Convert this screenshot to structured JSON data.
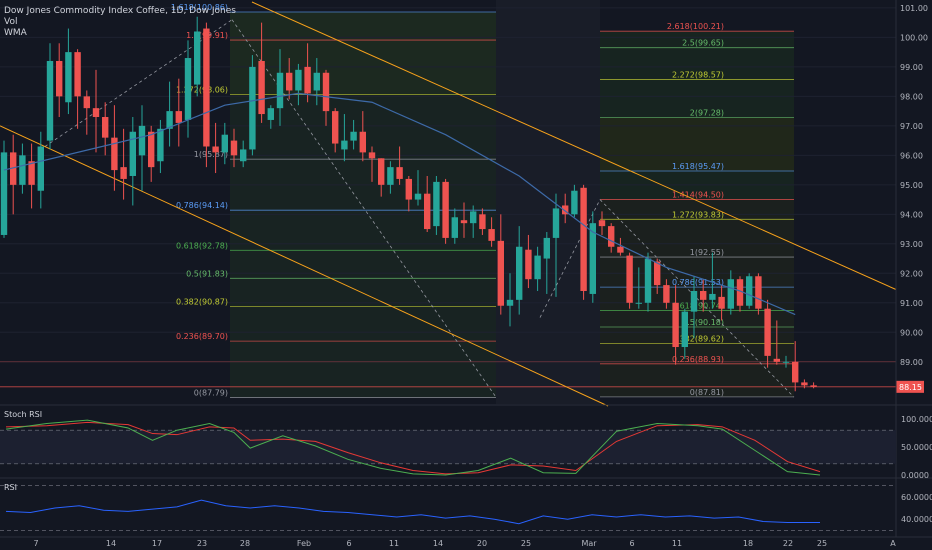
{
  "header": {
    "symbol_title": "Dow Jones Commodity Index Coffee, 1D, Dow Jones",
    "vol_label": "Vol",
    "wma_label": "WMA"
  },
  "panes": {
    "stoch_label": "Stoch RSI",
    "rsi_label": "RSI"
  },
  "colors": {
    "background": "#131722",
    "up": "#26a69a",
    "down": "#ef5350",
    "wma": "#3d6aa8",
    "channel": "#f7a21b",
    "stoch_k": "#4caf50",
    "stoch_d": "#e53935",
    "rsi": "#2962ff"
  },
  "chart_data": {
    "type": "candlestick",
    "title": "Dow Jones Commodity Index Coffee, 1D, Dow Jones",
    "ylim": [
      87.5,
      101.2
    ],
    "price_ticks": [
      "101.00",
      "100.00",
      "99.00",
      "98.00",
      "97.00",
      "96.00",
      "95.00",
      "94.00",
      "93.00",
      "92.00",
      "91.00",
      "90.00",
      "89.00"
    ],
    "x_ticks": [
      "7",
      "14",
      "17",
      "23",
      "28",
      "Feb",
      "6",
      "11",
      "14",
      "20",
      "25",
      "Mar",
      "6",
      "11",
      "18",
      "22",
      "25",
      "A"
    ],
    "last_price": "88.15",
    "candles": [
      {
        "o": 93.3,
        "h": 96.5,
        "l": 93.2,
        "c": 96.1
      },
      {
        "o": 96.1,
        "h": 96.7,
        "l": 94.0,
        "c": 95.0
      },
      {
        "o": 95.0,
        "h": 96.4,
        "l": 94.7,
        "c": 96.0
      },
      {
        "o": 95.8,
        "h": 96.4,
        "l": 94.2,
        "c": 95.0
      },
      {
        "o": 94.8,
        "h": 96.8,
        "l": 94.2,
        "c": 96.3
      },
      {
        "o": 96.5,
        "h": 99.8,
        "l": 96.2,
        "c": 99.2
      },
      {
        "o": 99.2,
        "h": 99.8,
        "l": 97.3,
        "c": 98.0
      },
      {
        "o": 97.8,
        "h": 100.3,
        "l": 97.4,
        "c": 99.5
      },
      {
        "o": 99.5,
        "h": 99.6,
        "l": 96.9,
        "c": 98.0
      },
      {
        "o": 98.0,
        "h": 98.2,
        "l": 96.7,
        "c": 97.6
      },
      {
        "o": 97.6,
        "h": 98.9,
        "l": 96.1,
        "c": 97.3
      },
      {
        "o": 97.3,
        "h": 97.8,
        "l": 96.0,
        "c": 96.6
      },
      {
        "o": 96.6,
        "h": 97.7,
        "l": 94.8,
        "c": 95.5
      },
      {
        "o": 95.6,
        "h": 96.9,
        "l": 94.5,
        "c": 95.2
      },
      {
        "o": 95.3,
        "h": 97.3,
        "l": 94.3,
        "c": 96.8
      },
      {
        "o": 96.0,
        "h": 97.7,
        "l": 94.8,
        "c": 97.0
      },
      {
        "o": 96.8,
        "h": 97.0,
        "l": 95.1,
        "c": 95.6
      },
      {
        "o": 95.8,
        "h": 97.2,
        "l": 95.4,
        "c": 96.9
      },
      {
        "o": 96.9,
        "h": 98.5,
        "l": 96.3,
        "c": 97.5
      },
      {
        "o": 97.5,
        "h": 98.6,
        "l": 96.3,
        "c": 97.1
      },
      {
        "o": 97.2,
        "h": 99.9,
        "l": 96.6,
        "c": 99.3
      },
      {
        "o": 98.4,
        "h": 100.7,
        "l": 98.0,
        "c": 100.2
      },
      {
        "o": 100.3,
        "h": 100.5,
        "l": 95.6,
        "c": 96.3
      },
      {
        "o": 96.3,
        "h": 97.1,
        "l": 95.4,
        "c": 96.1
      },
      {
        "o": 96.1,
        "h": 97.1,
        "l": 95.7,
        "c": 96.7
      },
      {
        "o": 96.5,
        "h": 96.9,
        "l": 95.6,
        "c": 96.0
      },
      {
        "o": 95.8,
        "h": 96.5,
        "l": 95.6,
        "c": 96.2
      },
      {
        "o": 96.2,
        "h": 99.4,
        "l": 96.0,
        "c": 99.0
      },
      {
        "o": 99.2,
        "h": 100.5,
        "l": 97.1,
        "c": 97.4
      },
      {
        "o": 97.2,
        "h": 97.7,
        "l": 96.9,
        "c": 97.6
      },
      {
        "o": 97.6,
        "h": 99.6,
        "l": 97.0,
        "c": 98.8
      },
      {
        "o": 98.8,
        "h": 99.3,
        "l": 97.9,
        "c": 98.2
      },
      {
        "o": 98.2,
        "h": 99.1,
        "l": 97.7,
        "c": 98.9
      },
      {
        "o": 99.0,
        "h": 99.8,
        "l": 97.8,
        "c": 98.1
      },
      {
        "o": 98.2,
        "h": 99.3,
        "l": 97.7,
        "c": 98.8
      },
      {
        "o": 98.8,
        "h": 98.9,
        "l": 97.0,
        "c": 97.5
      },
      {
        "o": 97.5,
        "h": 97.6,
        "l": 96.1,
        "c": 96.4
      },
      {
        "o": 96.2,
        "h": 97.4,
        "l": 95.8,
        "c": 96.5
      },
      {
        "o": 96.5,
        "h": 97.2,
        "l": 96.2,
        "c": 96.8
      },
      {
        "o": 96.8,
        "h": 97.5,
        "l": 95.8,
        "c": 96.1
      },
      {
        "o": 96.1,
        "h": 96.3,
        "l": 95.1,
        "c": 95.9
      },
      {
        "o": 95.9,
        "h": 95.9,
        "l": 94.6,
        "c": 95.0
      },
      {
        "o": 95.0,
        "h": 95.8,
        "l": 94.7,
        "c": 95.6
      },
      {
        "o": 95.6,
        "h": 96.3,
        "l": 95.0,
        "c": 95.2
      },
      {
        "o": 95.2,
        "h": 95.3,
        "l": 94.1,
        "c": 94.5
      },
      {
        "o": 94.5,
        "h": 95.5,
        "l": 94.3,
        "c": 94.7
      },
      {
        "o": 94.7,
        "h": 95.3,
        "l": 93.4,
        "c": 93.5
      },
      {
        "o": 93.6,
        "h": 95.3,
        "l": 93.3,
        "c": 95.1
      },
      {
        "o": 95.1,
        "h": 95.2,
        "l": 93.0,
        "c": 93.2
      },
      {
        "o": 93.2,
        "h": 94.2,
        "l": 93.0,
        "c": 93.9
      },
      {
        "o": 93.8,
        "h": 94.4,
        "l": 93.2,
        "c": 93.7
      },
      {
        "o": 93.7,
        "h": 94.3,
        "l": 93.2,
        "c": 94.1
      },
      {
        "o": 94.0,
        "h": 94.2,
        "l": 93.3,
        "c": 93.5
      },
      {
        "o": 93.5,
        "h": 93.9,
        "l": 92.9,
        "c": 93.1
      },
      {
        "o": 93.1,
        "h": 94.0,
        "l": 90.6,
        "c": 90.9
      },
      {
        "o": 90.9,
        "h": 92.0,
        "l": 90.2,
        "c": 91.1
      },
      {
        "o": 91.1,
        "h": 93.6,
        "l": 90.6,
        "c": 92.9
      },
      {
        "o": 92.8,
        "h": 93.3,
        "l": 91.5,
        "c": 91.8
      },
      {
        "o": 91.8,
        "h": 92.9,
        "l": 91.4,
        "c": 92.6
      },
      {
        "o": 92.5,
        "h": 93.4,
        "l": 91.3,
        "c": 93.2
      },
      {
        "o": 93.2,
        "h": 94.7,
        "l": 91.2,
        "c": 94.2
      },
      {
        "o": 94.3,
        "h": 94.7,
        "l": 93.7,
        "c": 94.0
      },
      {
        "o": 94.0,
        "h": 95.0,
        "l": 93.9,
        "c": 94.8
      },
      {
        "o": 94.9,
        "h": 95.0,
        "l": 91.1,
        "c": 91.4
      },
      {
        "o": 91.3,
        "h": 94.1,
        "l": 91.0,
        "c": 93.7
      },
      {
        "o": 93.8,
        "h": 94.1,
        "l": 93.3,
        "c": 93.6
      },
      {
        "o": 93.6,
        "h": 93.7,
        "l": 92.7,
        "c": 92.9
      },
      {
        "o": 92.9,
        "h": 93.2,
        "l": 92.6,
        "c": 92.7
      },
      {
        "o": 92.6,
        "h": 92.7,
        "l": 90.8,
        "c": 91.0
      },
      {
        "o": 91.0,
        "h": 92.2,
        "l": 90.8,
        "c": 91.0
      },
      {
        "o": 91.0,
        "h": 92.7,
        "l": 90.7,
        "c": 92.5
      },
      {
        "o": 92.4,
        "h": 92.5,
        "l": 91.3,
        "c": 91.6
      },
      {
        "o": 91.6,
        "h": 91.8,
        "l": 90.8,
        "c": 91.0
      },
      {
        "o": 91.0,
        "h": 91.6,
        "l": 88.9,
        "c": 89.5
      },
      {
        "o": 89.5,
        "h": 90.8,
        "l": 89.1,
        "c": 90.7
      },
      {
        "o": 90.7,
        "h": 91.9,
        "l": 89.8,
        "c": 91.4
      },
      {
        "o": 91.4,
        "h": 91.8,
        "l": 90.7,
        "c": 91.1
      },
      {
        "o": 91.1,
        "h": 92.7,
        "l": 90.8,
        "c": 91.3
      },
      {
        "o": 91.2,
        "h": 91.6,
        "l": 90.4,
        "c": 90.8
      },
      {
        "o": 90.8,
        "h": 92.1,
        "l": 90.6,
        "c": 91.8
      },
      {
        "o": 91.8,
        "h": 91.9,
        "l": 90.7,
        "c": 90.9
      },
      {
        "o": 90.9,
        "h": 92.0,
        "l": 90.8,
        "c": 91.9
      },
      {
        "o": 91.9,
        "h": 92.0,
        "l": 90.6,
        "c": 90.8
      },
      {
        "o": 90.8,
        "h": 91.1,
        "l": 88.8,
        "c": 89.2
      },
      {
        "o": 89.1,
        "h": 90.4,
        "l": 88.9,
        "c": 89.0
      },
      {
        "o": 89.0,
        "h": 89.2,
        "l": 88.8,
        "c": 89.0
      },
      {
        "o": 89.0,
        "h": 89.7,
        "l": 88.0,
        "c": 88.3
      },
      {
        "o": 88.3,
        "h": 88.4,
        "l": 88.1,
        "c": 88.2
      },
      {
        "o": 88.2,
        "h": 88.3,
        "l": 88.1,
        "c": 88.15
      }
    ],
    "wma": [
      [
        0,
        95.5
      ],
      [
        8,
        96.1
      ],
      [
        16,
        96.7
      ],
      [
        24,
        97.7
      ],
      [
        32,
        98.1
      ],
      [
        40,
        97.8
      ],
      [
        48,
        96.7
      ],
      [
        56,
        95.3
      ],
      [
        64,
        93.4
      ],
      [
        72,
        92.2
      ],
      [
        80,
        91.4
      ],
      [
        86,
        90.6
      ]
    ],
    "fib_left": [
      {
        "label": "1.618(100.86)",
        "price": 100.86,
        "color": "#5b9cf6"
      },
      {
        "label": "1.5(99.91)",
        "price": 99.91,
        "color": "#ef5350"
      },
      {
        "label": "1.272(98.06)",
        "price": 98.06,
        "color": "#c0ca33"
      },
      {
        "label": "1(95.87)",
        "price": 95.87,
        "color": "#9598a1"
      },
      {
        "label": "0.786(94.14)",
        "price": 94.14,
        "color": "#5b9cf6"
      },
      {
        "label": "0.618(92.78)",
        "price": 92.78,
        "color": "#4caf50"
      },
      {
        "label": "0.5(91.83)",
        "price": 91.83,
        "color": "#66bb6a"
      },
      {
        "label": "0.382(90.87)",
        "price": 90.87,
        "color": "#c0ca33"
      },
      {
        "label": "0.236(89.70)",
        "price": 89.7,
        "color": "#ef5350"
      },
      {
        "label": "0(87.79)",
        "price": 87.79,
        "color": "#9598a1"
      }
    ],
    "fib_right": [
      {
        "label": "2.618(100.21)",
        "price": 100.21,
        "color": "#ef5350"
      },
      {
        "label": "2.5(99.65)",
        "price": 99.65,
        "color": "#66bb6a"
      },
      {
        "label": "2.272(98.57)",
        "price": 98.57,
        "color": "#c0ca33"
      },
      {
        "label": "2(97.28)",
        "price": 97.28,
        "color": "#66bb6a"
      },
      {
        "label": "1.618(95.47)",
        "price": 95.47,
        "color": "#5b9cf6"
      },
      {
        "label": "1.414(94.50)",
        "price": 94.5,
        "color": "#ef5350"
      },
      {
        "label": "1.272(93.83)",
        "price": 93.83,
        "color": "#c0ca33"
      },
      {
        "label": "1(92.55)",
        "price": 92.55,
        "color": "#9598a1"
      },
      {
        "label": "0.786(91.53)",
        "price": 91.53,
        "color": "#5b9cf6"
      },
      {
        "label": "0.618(90.74)",
        "price": 90.74,
        "color": "#4caf50"
      },
      {
        "label": "0.5(90.18)",
        "price": 90.18,
        "color": "#66bb6a"
      },
      {
        "label": "0.382(89.62)",
        "price": 89.62,
        "color": "#c0ca33"
      },
      {
        "label": "0.236(88.93)",
        "price": 88.93,
        "color": "#ef5350"
      },
      {
        "label": "0(87.81)",
        "price": 87.81,
        "color": "#9598a1"
      }
    ],
    "stoch_ticks": [
      "100.0000",
      "50.0000",
      "0.0000"
    ],
    "rsi_ticks": [
      "60.0000",
      "40.0000"
    ],
    "stoch_k": [
      [
        0,
        82
      ],
      [
        5,
        92
      ],
      [
        10,
        98
      ],
      [
        15,
        84
      ],
      [
        18,
        62
      ],
      [
        21,
        80
      ],
      [
        25,
        92
      ],
      [
        28,
        76
      ],
      [
        30,
        48
      ],
      [
        34,
        70
      ],
      [
        38,
        52
      ],
      [
        42,
        28
      ],
      [
        46,
        12
      ],
      [
        50,
        2
      ],
      [
        54,
        0
      ],
      [
        58,
        8
      ],
      [
        62,
        30
      ],
      [
        66,
        4
      ],
      [
        70,
        3
      ],
      [
        75,
        78
      ],
      [
        80,
        92
      ],
      [
        85,
        88
      ],
      [
        88,
        82
      ],
      [
        92,
        44
      ],
      [
        96,
        6
      ],
      [
        100,
        0
      ]
    ],
    "stoch_d": [
      [
        0,
        86
      ],
      [
        5,
        88
      ],
      [
        10,
        94
      ],
      [
        15,
        90
      ],
      [
        18,
        74
      ],
      [
        21,
        72
      ],
      [
        25,
        86
      ],
      [
        28,
        84
      ],
      [
        30,
        62
      ],
      [
        34,
        64
      ],
      [
        38,
        60
      ],
      [
        42,
        40
      ],
      [
        46,
        22
      ],
      [
        50,
        8
      ],
      [
        54,
        2
      ],
      [
        58,
        4
      ],
      [
        62,
        18
      ],
      [
        66,
        16
      ],
      [
        70,
        8
      ],
      [
        75,
        60
      ],
      [
        80,
        88
      ],
      [
        85,
        90
      ],
      [
        88,
        86
      ],
      [
        92,
        62
      ],
      [
        96,
        24
      ],
      [
        100,
        6
      ]
    ],
    "rsi": [
      [
        0,
        47
      ],
      [
        3,
        46
      ],
      [
        6,
        50
      ],
      [
        9,
        52
      ],
      [
        12,
        48
      ],
      [
        15,
        47
      ],
      [
        18,
        49
      ],
      [
        21,
        51
      ],
      [
        24,
        57
      ],
      [
        27,
        52
      ],
      [
        30,
        50
      ],
      [
        33,
        52
      ],
      [
        36,
        50
      ],
      [
        39,
        47
      ],
      [
        42,
        46
      ],
      [
        45,
        44
      ],
      [
        48,
        42
      ],
      [
        51,
        44
      ],
      [
        54,
        41
      ],
      [
        57,
        43
      ],
      [
        60,
        40
      ],
      [
        63,
        36
      ],
      [
        66,
        43
      ],
      [
        69,
        40
      ],
      [
        72,
        44
      ],
      [
        75,
        42
      ],
      [
        78,
        44
      ],
      [
        81,
        42
      ],
      [
        84,
        43
      ],
      [
        87,
        41
      ],
      [
        90,
        42
      ],
      [
        93,
        38
      ],
      [
        96,
        37
      ],
      [
        100,
        37
      ]
    ]
  }
}
